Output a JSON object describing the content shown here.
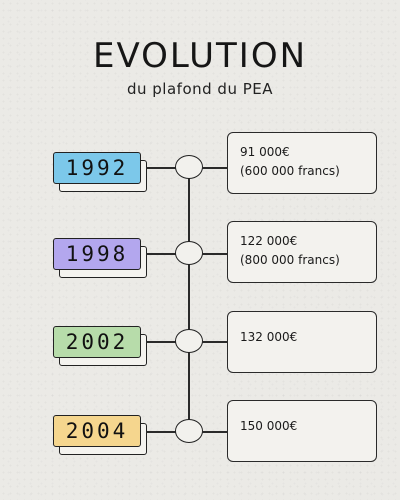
{
  "header": {
    "title": "EVOLUTION",
    "subtitle": "du plafond du PEA"
  },
  "colors": {
    "1992": "#7cc8ea",
    "1998": "#b3a7ee",
    "2002": "#b7dcaa",
    "2004": "#f5d68e"
  },
  "timeline": [
    {
      "year": "1992",
      "line1": "91 000€",
      "line2": "(600 000 francs)"
    },
    {
      "year": "1998",
      "line1": "122 000€",
      "line2": "(800 000 francs)"
    },
    {
      "year": "2002",
      "line1": "132 000€",
      "line2": ""
    },
    {
      "year": "2004",
      "line1": "150 000€",
      "line2": ""
    }
  ]
}
